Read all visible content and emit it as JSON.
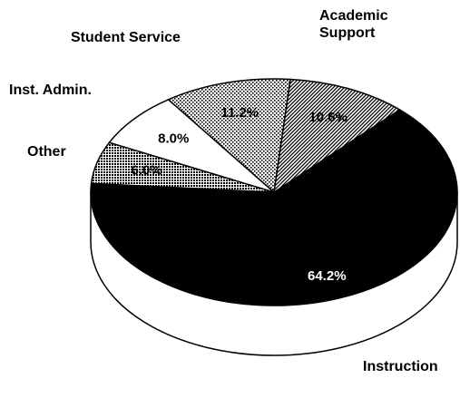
{
  "chart_data": {
    "type": "pie",
    "categories": [
      "Instruction",
      "Other",
      "Inst. Admin.",
      "Student Service",
      "Academic Support"
    ],
    "values": [
      64.2,
      6.0,
      8.0,
      11.2,
      10.6
    ],
    "value_labels": [
      "64.2%",
      "6.0%",
      "8.0%",
      "11.2%",
      "10.6%"
    ],
    "colors": [
      "#000000",
      "#555555",
      "#ffffff",
      "#dddddd",
      "#999999"
    ]
  }
}
